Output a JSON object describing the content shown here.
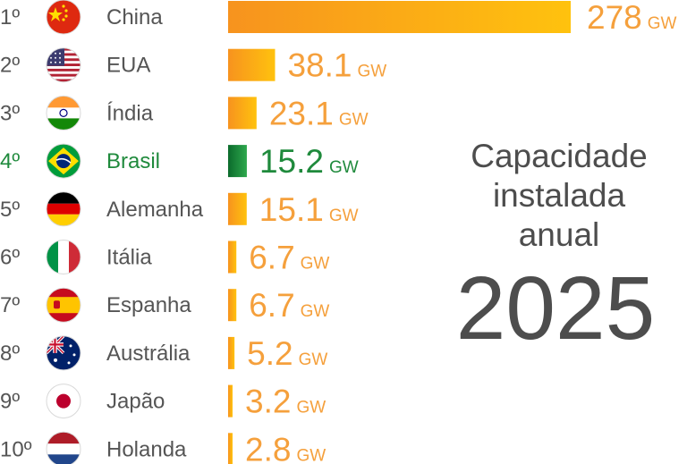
{
  "title": "",
  "side": {
    "line1": "Capacidade",
    "line2": "instalada",
    "line3": "anual",
    "year": "2025"
  },
  "colors": {
    "bar": "#f5a623",
    "bar_highlight": "#1f8a3c",
    "text": "#555555"
  },
  "chart_data": {
    "type": "bar",
    "orientation": "horizontal",
    "unit": "GW",
    "categories": [
      "China",
      "EUA",
      "Índia",
      "Brasil",
      "Alemanha",
      "Itália",
      "Espanha",
      "Austrália",
      "Japão",
      "Holanda"
    ],
    "ranks": [
      "1º",
      "2º",
      "3º",
      "4º",
      "5º",
      "6º",
      "7º",
      "8º",
      "9º",
      "10º"
    ],
    "values": [
      278,
      38.1,
      23.1,
      15.2,
      15.1,
      6.7,
      6.7,
      5.2,
      3.2,
      2.8
    ],
    "labels": [
      "278",
      "38.1",
      "23.1",
      "15.2",
      "15.1",
      "6.7",
      "6.7",
      "5.2",
      "3.2",
      "2.8"
    ],
    "flags": [
      "china-flag-icon",
      "usa-flag-icon",
      "india-flag-icon",
      "brazil-flag-icon",
      "germany-flag-icon",
      "italy-flag-icon",
      "spain-flag-icon",
      "australia-flag-icon",
      "japan-flag-icon",
      "netherlands-flag-icon"
    ],
    "highlight": "Brasil",
    "xlim": [
      0,
      278
    ],
    "grid": false,
    "legend": "none"
  }
}
